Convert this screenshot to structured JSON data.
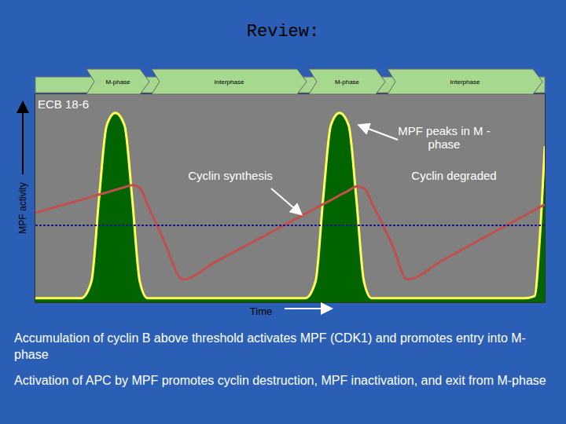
{
  "title": "Review:",
  "phases": [
    "M-phase",
    "Interphase",
    "M-phase",
    "Interphase"
  ],
  "chart_data": {
    "type": "line",
    "ylabel": "MPF activity",
    "xlabel": "Time",
    "annotations": [
      "ECB 18-6",
      "MPF peaks in M -phase",
      "Cyclin synthesis",
      "Cyclin degraded"
    ],
    "xlim": [
      0,
      100
    ],
    "ylim": [
      0,
      100
    ],
    "tick_labels": false,
    "x": [
      0,
      5,
      9,
      11,
      12.5,
      14,
      15.7,
      17.5,
      19,
      20.5,
      22,
      25,
      29,
      35,
      40,
      45,
      50,
      53,
      55,
      56.5,
      58,
      59.7,
      61.5,
      63,
      64.5,
      66,
      70,
      73,
      80,
      90,
      96,
      98,
      99,
      100
    ],
    "series": [
      {
        "type": "area",
        "color": "#006400",
        "values": [
          2,
          2,
          2,
          10,
          50,
          85,
          91,
          85,
          50,
          10,
          2,
          2,
          2,
          2,
          2,
          2,
          2,
          2,
          10,
          50,
          85,
          91,
          85,
          50,
          10,
          2,
          2,
          2,
          2,
          2,
          2,
          3,
          30,
          75
        ]
      },
      {
        "type": "line",
        "color": "#c0504d",
        "values": [
          43,
          46.5,
          49.3,
          50.7,
          51.8,
          52.8,
          54,
          55.3,
          56.3,
          55,
          47,
          31,
          11,
          18.9,
          25.5,
          32,
          38.6,
          42.5,
          45.2,
          47.2,
          49.1,
          51.4,
          53.7,
          55.7,
          55,
          48,
          28,
          11,
          20.3,
          33.7,
          41.7,
          44.3,
          45.7,
          47
        ]
      }
    ],
    "threshold": {
      "value": 37,
      "color": "#1a1a80",
      "line_style": "dotted"
    }
  },
  "text": [
    "Accumulation of cyclin B above threshold activates MPF (CDK1) and promotes entry into M-phase",
    "Activation of APC by MPF promotes cyclin destruction, MPF inactivation, and exit from M-phase"
  ]
}
